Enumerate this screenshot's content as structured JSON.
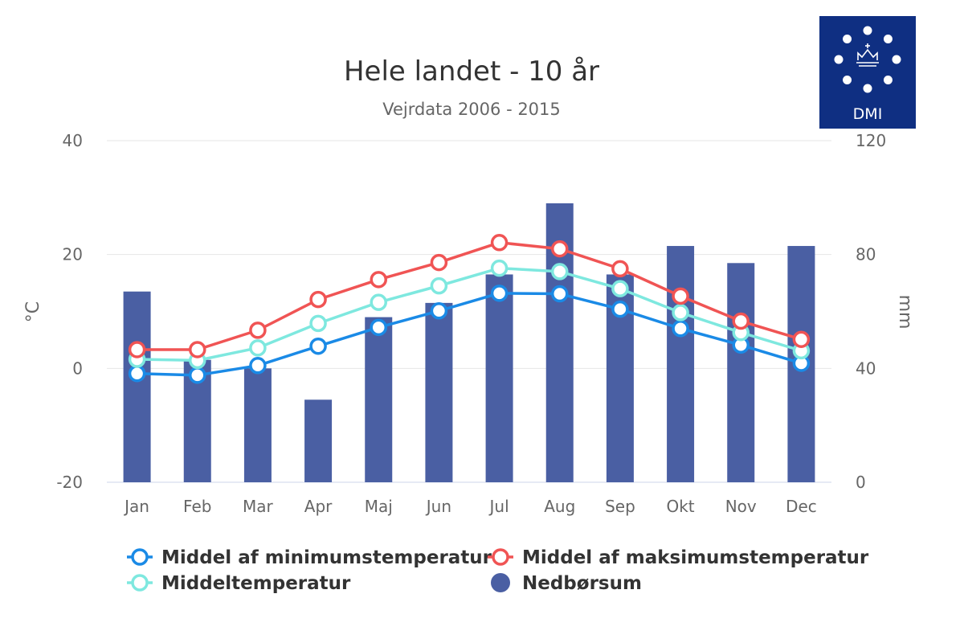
{
  "chart_data": {
    "type": "bar+line",
    "title": "Hele landet - 10 år",
    "subtitle": "Vejrdata 2006 - 2015",
    "categories": [
      "Jan",
      "Feb",
      "Mar",
      "Apr",
      "Maj",
      "Jun",
      "Jul",
      "Aug",
      "Sep",
      "Okt",
      "Nov",
      "Dec"
    ],
    "y_left": {
      "label": "°C",
      "min": -20,
      "max": 40,
      "ticks": [
        -20,
        0,
        20,
        40
      ]
    },
    "y_right": {
      "label": "mm",
      "min": 0,
      "max": 120,
      "ticks": [
        0,
        40,
        80,
        120
      ]
    },
    "grid": true,
    "legend_position": "bottom",
    "series": [
      {
        "name": "Middel af minimumstemperatur",
        "type": "line",
        "axis": "left",
        "color": "#1a8ae6",
        "values": [
          -0.9,
          -1.2,
          0.5,
          3.9,
          7.2,
          10.1,
          13.2,
          13.1,
          10.4,
          7.0,
          4.1,
          0.9
        ]
      },
      {
        "name": "Middel af maksimumstemperatur",
        "type": "line",
        "axis": "left",
        "color": "#f05454",
        "values": [
          3.3,
          3.3,
          6.7,
          12.1,
          15.6,
          18.6,
          22.1,
          21.0,
          17.5,
          12.7,
          8.3,
          5.1
        ]
      },
      {
        "name": "Middeltemperatur",
        "type": "line",
        "axis": "left",
        "color": "#7ee8df",
        "values": [
          1.6,
          1.4,
          3.6,
          7.9,
          11.6,
          14.5,
          17.6,
          17.0,
          14.0,
          9.8,
          6.3,
          3.1
        ]
      },
      {
        "name": "Nedbørsum",
        "type": "bar",
        "axis": "right",
        "color": "#4a5fa3",
        "values": [
          67,
          43,
          40,
          29,
          58,
          63,
          73,
          98,
          73,
          83,
          77,
          83
        ]
      }
    ],
    "legend_order": [
      "Middel af minimumstemperatur",
      "Middel af maksimumstemperatur",
      "Middeltemperatur",
      "Nedbørsum"
    ]
  },
  "logo": {
    "text": "DMI",
    "background": "#0f2f82"
  }
}
